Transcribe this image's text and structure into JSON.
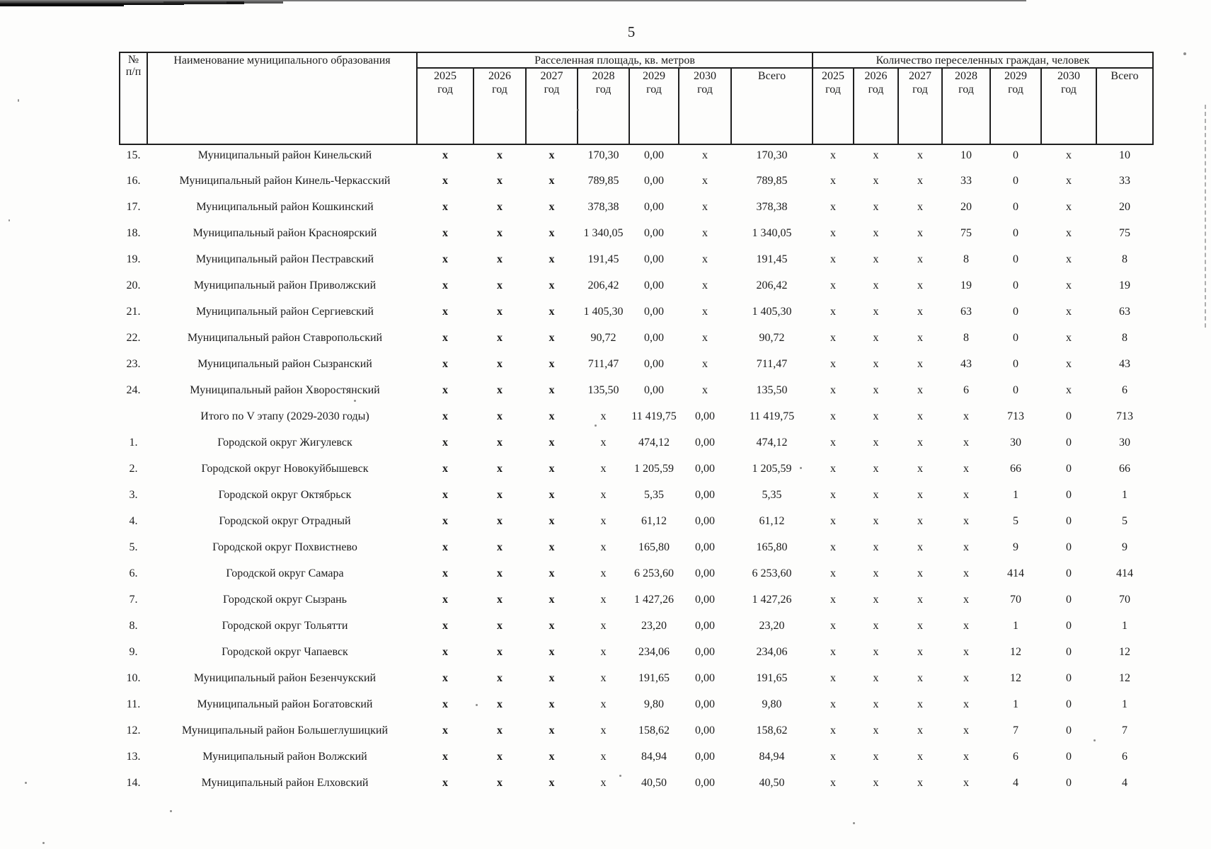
{
  "page": {
    "number": "5"
  },
  "table": {
    "headers": {
      "num_line1": "№",
      "num_line2": "п/п",
      "name": "Наименование муниципального образования",
      "area_group": "Расселенная площадь, кв. метров",
      "citizens_group": "Количество переселенных граждан, человек",
      "years": [
        "2025 год",
        "2026 год",
        "2027 год",
        "2028 год",
        "2029 год",
        "2030 год"
      ],
      "total": "Всего"
    },
    "rows": [
      {
        "num": "15.",
        "name": "Муниципальный район Кинельский",
        "area": [
          "x",
          "x",
          "x",
          "170,30",
          "0,00",
          "x",
          "170,30"
        ],
        "citizens": [
          "x",
          "x",
          "x",
          "10",
          "0",
          "x",
          "10"
        ]
      },
      {
        "num": "16.",
        "name": "Муниципальный район Кинель-Черкасский",
        "area": [
          "x",
          "x",
          "x",
          "789,85",
          "0,00",
          "x",
          "789,85"
        ],
        "citizens": [
          "x",
          "x",
          "x",
          "33",
          "0",
          "x",
          "33"
        ]
      },
      {
        "num": "17.",
        "name": "Муниципальный район Кошкинский",
        "area": [
          "x",
          "x",
          "x",
          "378,38",
          "0,00",
          "x",
          "378,38"
        ],
        "citizens": [
          "x",
          "x",
          "x",
          "20",
          "0",
          "x",
          "20"
        ]
      },
      {
        "num": "18.",
        "name": "Муниципальный район Красноярский",
        "area": [
          "x",
          "x",
          "x",
          "1 340,05",
          "0,00",
          "x",
          "1 340,05"
        ],
        "citizens": [
          "x",
          "x",
          "x",
          "75",
          "0",
          "x",
          "75"
        ]
      },
      {
        "num": "19.",
        "name": "Муниципальный район Пестравский",
        "area": [
          "x",
          "x",
          "x",
          "191,45",
          "0,00",
          "x",
          "191,45"
        ],
        "citizens": [
          "x",
          "x",
          "x",
          "8",
          "0",
          "x",
          "8"
        ]
      },
      {
        "num": "20.",
        "name": "Муниципальный район Приволжский",
        "area": [
          "x",
          "x",
          "x",
          "206,42",
          "0,00",
          "x",
          "206,42"
        ],
        "citizens": [
          "x",
          "x",
          "x",
          "19",
          "0",
          "x",
          "19"
        ]
      },
      {
        "num": "21.",
        "name": "Муниципальный район Сергиевский",
        "area": [
          "x",
          "x",
          "x",
          "1 405,30",
          "0,00",
          "x",
          "1 405,30"
        ],
        "citizens": [
          "x",
          "x",
          "x",
          "63",
          "0",
          "x",
          "63"
        ]
      },
      {
        "num": "22.",
        "name": "Муниципальный район Ставропольский",
        "area": [
          "x",
          "x",
          "x",
          "90,72",
          "0,00",
          "x",
          "90,72"
        ],
        "citizens": [
          "x",
          "x",
          "x",
          "8",
          "0",
          "x",
          "8"
        ]
      },
      {
        "num": "23.",
        "name": "Муниципальный район Сызранский",
        "area": [
          "x",
          "x",
          "x",
          "711,47",
          "0,00",
          "x",
          "711,47"
        ],
        "citizens": [
          "x",
          "x",
          "x",
          "43",
          "0",
          "x",
          "43"
        ]
      },
      {
        "num": "24.",
        "name": "Муниципальный район Хворостянский",
        "area": [
          "x",
          "x",
          "x",
          "135,50",
          "0,00",
          "x",
          "135,50"
        ],
        "citizens": [
          "x",
          "x",
          "x",
          "6",
          "0",
          "x",
          "6"
        ]
      },
      {
        "num": "",
        "name": "Итого по V этапу (2029-2030 годы)",
        "area": [
          "x",
          "x",
          "x",
          "x",
          "11 419,75",
          "0,00",
          "11 419,75"
        ],
        "citizens": [
          "x",
          "x",
          "x",
          "x",
          "713",
          "0",
          "713"
        ]
      },
      {
        "num": "1.",
        "name": "Городской округ Жигулевск",
        "area": [
          "x",
          "x",
          "x",
          "x",
          "474,12",
          "0,00",
          "474,12"
        ],
        "citizens": [
          "x",
          "x",
          "x",
          "x",
          "30",
          "0",
          "30"
        ]
      },
      {
        "num": "2.",
        "name": "Городской округ  Новокуйбышевск",
        "area": [
          "x",
          "x",
          "x",
          "x",
          "1 205,59",
          "0,00",
          "1 205,59"
        ],
        "citizens": [
          "x",
          "x",
          "x",
          "x",
          "66",
          "0",
          "66"
        ]
      },
      {
        "num": "3.",
        "name": "Городской округ Октябрьск",
        "area": [
          "x",
          "x",
          "x",
          "x",
          "5,35",
          "0,00",
          "5,35"
        ],
        "citizens": [
          "x",
          "x",
          "x",
          "x",
          "1",
          "0",
          "1"
        ]
      },
      {
        "num": "4.",
        "name": "Городской округ Отрадный",
        "area": [
          "x",
          "x",
          "x",
          "x",
          "61,12",
          "0,00",
          "61,12"
        ],
        "citizens": [
          "x",
          "x",
          "x",
          "x",
          "5",
          "0",
          "5"
        ]
      },
      {
        "num": "5.",
        "name": "Городской округ Похвистнево",
        "area": [
          "x",
          "x",
          "x",
          "x",
          "165,80",
          "0,00",
          "165,80"
        ],
        "citizens": [
          "x",
          "x",
          "x",
          "x",
          "9",
          "0",
          "9"
        ]
      },
      {
        "num": "6.",
        "name": "Городской округ Самара",
        "area": [
          "x",
          "x",
          "x",
          "x",
          "6 253,60",
          "0,00",
          "6 253,60"
        ],
        "citizens": [
          "x",
          "x",
          "x",
          "x",
          "414",
          "0",
          "414"
        ]
      },
      {
        "num": "7.",
        "name": "Городской округ  Сызрань",
        "area": [
          "x",
          "x",
          "x",
          "x",
          "1 427,26",
          "0,00",
          "1 427,26"
        ],
        "citizens": [
          "x",
          "x",
          "x",
          "x",
          "70",
          "0",
          "70"
        ]
      },
      {
        "num": "8.",
        "name": "Городской округ Тольятти",
        "area": [
          "x",
          "x",
          "x",
          "x",
          "23,20",
          "0,00",
          "23,20"
        ],
        "citizens": [
          "x",
          "x",
          "x",
          "x",
          "1",
          "0",
          "1"
        ]
      },
      {
        "num": "9.",
        "name": "Городской округ  Чапаевск",
        "area": [
          "x",
          "x",
          "x",
          "x",
          "234,06",
          "0,00",
          "234,06"
        ],
        "citizens": [
          "x",
          "x",
          "x",
          "x",
          "12",
          "0",
          "12"
        ]
      },
      {
        "num": "10.",
        "name": "Муниципальный район Безенчукский",
        "area": [
          "x",
          "x",
          "x",
          "x",
          "191,65",
          "0,00",
          "191,65"
        ],
        "citizens": [
          "x",
          "x",
          "x",
          "x",
          "12",
          "0",
          "12"
        ]
      },
      {
        "num": "11.",
        "name": "Муниципальный район Богатовский",
        "area": [
          "x",
          "x",
          "x",
          "x",
          "9,80",
          "0,00",
          "9,80"
        ],
        "citizens": [
          "x",
          "x",
          "x",
          "x",
          "1",
          "0",
          "1"
        ]
      },
      {
        "num": "12.",
        "name": "Муниципальный район Большеглушицкий",
        "area": [
          "x",
          "x",
          "x",
          "x",
          "158,62",
          "0,00",
          "158,62"
        ],
        "citizens": [
          "x",
          "x",
          "x",
          "x",
          "7",
          "0",
          "7"
        ]
      },
      {
        "num": "13.",
        "name": "Муниципальный район Волжский",
        "area": [
          "x",
          "x",
          "x",
          "x",
          "84,94",
          "0,00",
          "84,94"
        ],
        "citizens": [
          "x",
          "x",
          "x",
          "x",
          "6",
          "0",
          "6"
        ]
      },
      {
        "num": "14.",
        "name": "Муниципальный район Елховский",
        "area": [
          "x",
          "x",
          "x",
          "x",
          "40,50",
          "0,00",
          "40,50"
        ],
        "citizens": [
          "x",
          "x",
          "x",
          "x",
          "4",
          "0",
          "4"
        ]
      }
    ]
  }
}
